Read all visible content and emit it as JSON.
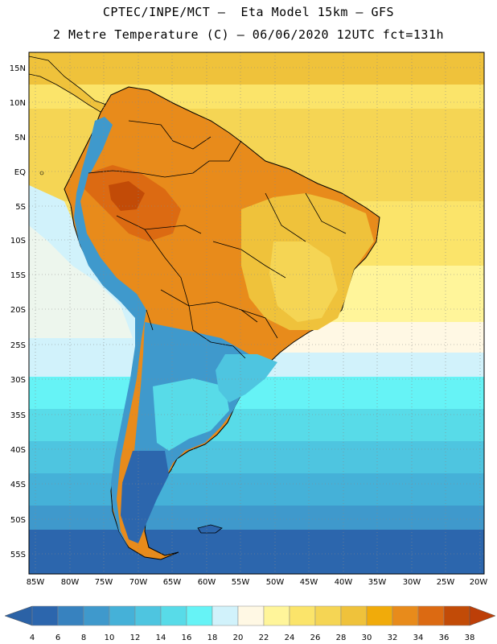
{
  "header": {
    "line1": "CPTEC/INPE/MCT –  Eta Model 15km – GFS",
    "line2": "2 Metre Temperature (C) – 06/06/2020 12UTC fct=131h"
  },
  "lat_labels": [
    "15N",
    "10N",
    "5N",
    "EQ",
    "5S",
    "10S",
    "15S",
    "20S",
    "25S",
    "30S",
    "35S",
    "40S",
    "45S",
    "50S",
    "55S"
  ],
  "lon_labels": [
    "85W",
    "80W",
    "75W",
    "70W",
    "65W",
    "60W",
    "55W",
    "50W",
    "45W",
    "40W",
    "35W",
    "30W",
    "25W",
    "20W"
  ],
  "colorbar": {
    "ticks": [
      "4",
      "6",
      "8",
      "10",
      "12",
      "14",
      "16",
      "18",
      "20",
      "22",
      "24",
      "26",
      "28",
      "30",
      "32",
      "34",
      "36",
      "38"
    ],
    "colors": [
      "#2c66ad",
      "#3782bf",
      "#3f99cc",
      "#45b1d8",
      "#4ec5e0",
      "#58dbe8",
      "#66f3f6",
      "#d1f2fb",
      "#fff8e4",
      "#fff59a",
      "#fbe46a",
      "#f5d554",
      "#efc23b",
      "#f1ab0a",
      "#e88b1b",
      "#dc6a12",
      "#c24b07"
    ],
    "under_color": "#2b62a6",
    "over_color": "#bd3f08"
  },
  "map": {
    "ocean_color": "#f5d554",
    "land_hot_color": "#e88b1b",
    "land_very_hot_color": "#dc6a12",
    "land_warm_color": "#efc23b",
    "cold_color": "#2c66ad",
    "cool_color": "#3f99cc"
  }
}
